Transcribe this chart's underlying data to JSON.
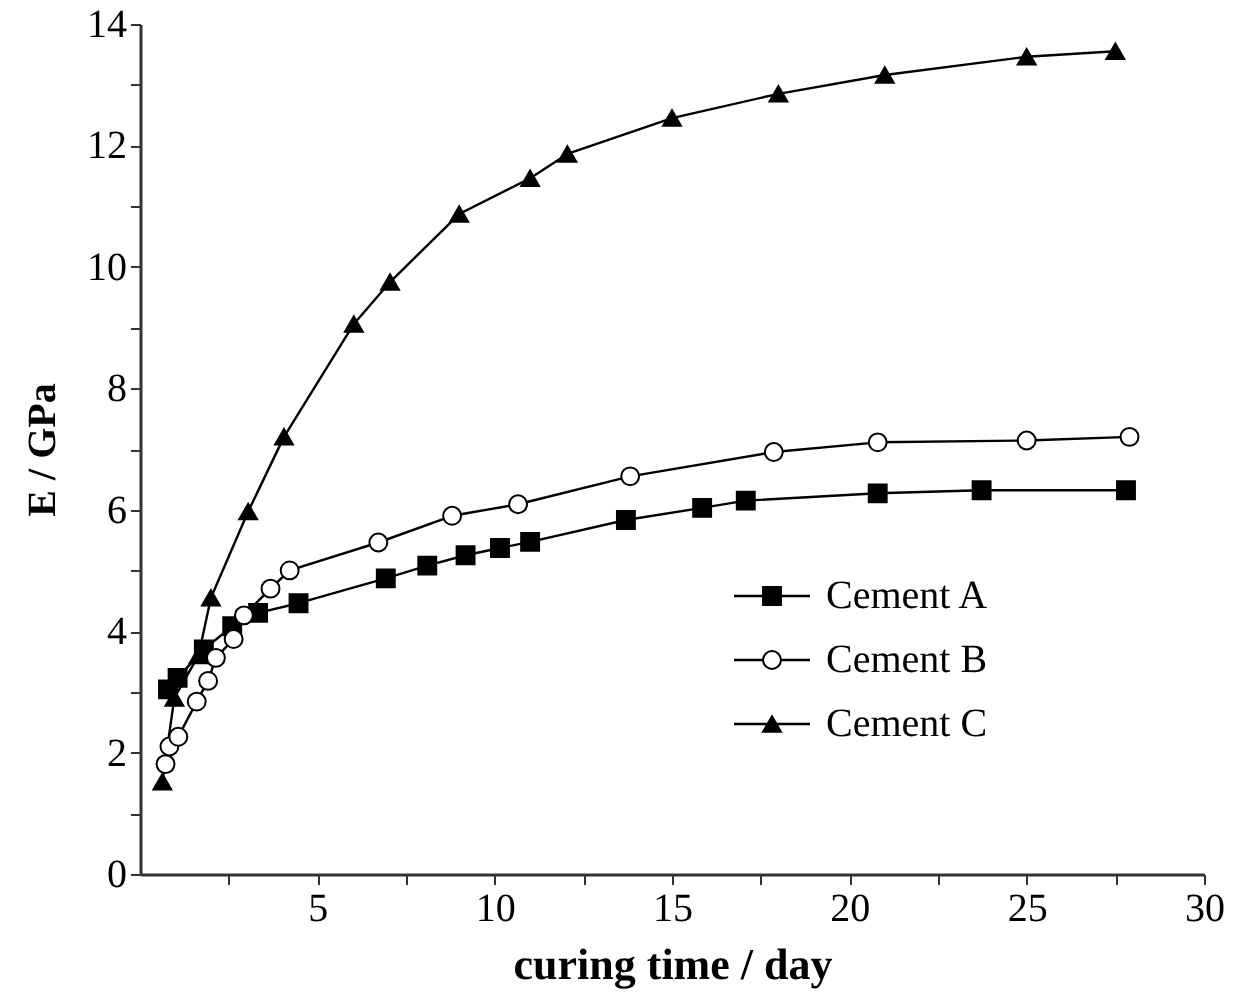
{
  "chart_data": {
    "type": "line",
    "xlabel": "curing time / day",
    "ylabel": "E / GPa",
    "xlim": [
      0,
      30
    ],
    "ylim": [
      0,
      14
    ],
    "xticks": [
      {
        "value": 2.5,
        "label": null
      },
      5,
      {
        "value": 7.5,
        "label": null
      },
      10,
      {
        "value": 12.5,
        "label": null
      },
      15,
      {
        "value": 17.5,
        "label": null
      },
      20,
      {
        "value": 22.5,
        "label": null
      },
      25,
      {
        "value": 27.5,
        "label": null
      },
      30
    ],
    "yticks": [
      0,
      {
        "value": 1,
        "label": null
      },
      2,
      {
        "value": 3,
        "label": null
      },
      4,
      {
        "value": 5,
        "label": null
      },
      6,
      {
        "value": 7,
        "label": null
      },
      8,
      {
        "value": 9,
        "label": null
      },
      10,
      {
        "value": 11,
        "label": null
      },
      12,
      {
        "value": 13,
        "label": null
      },
      14
    ],
    "legend": "right",
    "grid": false,
    "line_style": "solid",
    "series": [
      {
        "name": "Cement A",
        "color": "#000000",
        "marker": "square",
        "x": [
          0.79,
          1.06,
          1.8,
          2.6,
          3.33,
          4.47,
          6.93,
          8.1,
          9.18,
          10.15,
          11.0,
          13.7,
          15.85,
          17.08,
          20.8,
          23.73,
          27.8
        ],
        "values": [
          3.04,
          3.23,
          3.7,
          4.08,
          4.3,
          4.46,
          4.87,
          5.08,
          5.25,
          5.37,
          5.47,
          5.83,
          6.03,
          6.15,
          6.27,
          6.32,
          6.32
        ]
      },
      {
        "name": "Cement B",
        "color": "#000000",
        "marker": "circle",
        "x": [
          0.72,
          0.83,
          1.08,
          1.6,
          1.92,
          2.14,
          2.64,
          2.93,
          3.68,
          4.22,
          6.72,
          8.8,
          10.66,
          13.82,
          17.87,
          20.8,
          25.0,
          27.9
        ],
        "values": [
          1.81,
          2.1,
          2.26,
          2.84,
          3.18,
          3.56,
          3.87,
          4.26,
          4.7,
          5.0,
          5.46,
          5.9,
          6.09,
          6.55,
          6.95,
          7.11,
          7.14,
          7.2
        ]
      },
      {
        "name": "Cement C",
        "color": "#000000",
        "marker": "triangle",
        "x": [
          0.63,
          0.97,
          1.65,
          2.0,
          3.05,
          4.06,
          6.03,
          7.05,
          9.0,
          11.0,
          12.05,
          15.0,
          18.0,
          21.0,
          25.0,
          27.5
        ],
        "values": [
          1.52,
          2.9,
          3.6,
          4.55,
          5.97,
          7.2,
          9.06,
          9.75,
          10.87,
          11.46,
          11.86,
          12.45,
          12.85,
          13.16,
          13.46,
          13.55
        ]
      }
    ]
  }
}
